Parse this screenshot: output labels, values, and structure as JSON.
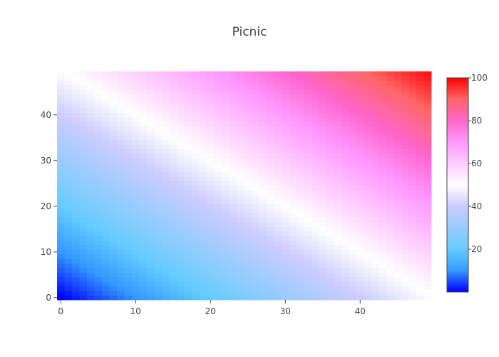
{
  "chart_data": {
    "type": "heatmap",
    "title": "Picnic",
    "colorscale_name": "Picnic",
    "colorscale": [
      [
        0.0,
        "#0000ff"
      ],
      [
        0.1,
        "#3399ff"
      ],
      [
        0.2,
        "#66ccff"
      ],
      [
        0.3,
        "#99ccff"
      ],
      [
        0.4,
        "#ccccff"
      ],
      [
        0.5,
        "#ffffff"
      ],
      [
        0.6,
        "#ffccff"
      ],
      [
        0.7,
        "#ff99ff"
      ],
      [
        0.8,
        "#ff66cc"
      ],
      [
        0.9,
        "#ff6666"
      ],
      [
        1.0,
        "#ff0000"
      ]
    ],
    "z_formula": "z = x + y for x, y in 0..49",
    "x_range": [
      0,
      49
    ],
    "y_range": [
      0,
      49
    ],
    "z_range": [
      0,
      100
    ],
    "x_ticks": [
      0,
      10,
      20,
      30,
      40
    ],
    "y_ticks": [
      0,
      10,
      20,
      30,
      40
    ],
    "colorbar_ticks": [
      20,
      40,
      60,
      80,
      100
    ],
    "xlabel": "",
    "ylabel": ""
  }
}
